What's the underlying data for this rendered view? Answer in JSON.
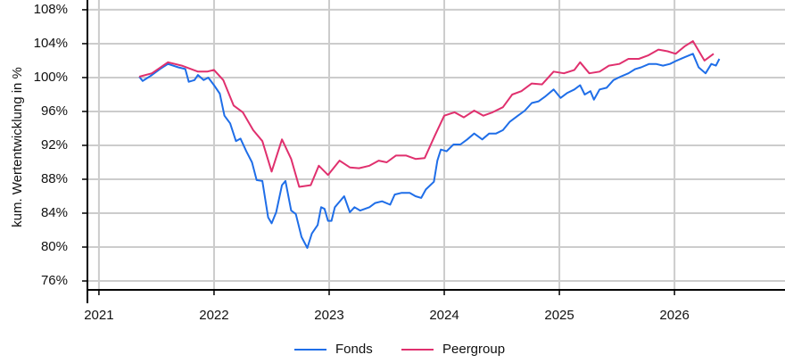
{
  "chart_data": {
    "type": "line",
    "y_label": "kum. Wertentwicklung in %",
    "xlim": [
      2020.9,
      2026.96
    ],
    "xticks": [
      2021,
      2022,
      2023,
      2024,
      2025,
      2026
    ],
    "ylim": [
      74.95,
      109.15
    ],
    "yticks": [
      {
        "value": 76,
        "label": "76%"
      },
      {
        "value": 80,
        "label": "80%"
      },
      {
        "value": 84,
        "label": "84%"
      },
      {
        "value": 88,
        "label": "88%"
      },
      {
        "value": 92,
        "label": "92%"
      },
      {
        "value": 96,
        "label": "96%"
      },
      {
        "value": 100,
        "label": "100%"
      },
      {
        "value": 104,
        "label": "104%"
      },
      {
        "value": 108,
        "label": "108%"
      }
    ],
    "grid": true,
    "legend": "bottom",
    "series": [
      {
        "name": "Fonds",
        "color": "#1f6ee8",
        "x": [
          2021.35,
          2021.38,
          2021.46,
          2021.53,
          2021.6,
          2021.69,
          2021.75,
          2021.78,
          2021.83,
          2021.86,
          2021.91,
          2021.95,
          2022.0,
          2022.05,
          2022.09,
          2022.14,
          2022.19,
          2022.23,
          2022.28,
          2022.33,
          2022.37,
          2022.42,
          2022.47,
          2022.5,
          2022.54,
          2022.59,
          2022.62,
          2022.67,
          2022.71,
          2022.76,
          2022.81,
          2022.85,
          2022.9,
          2022.93,
          2022.96,
          2022.99,
          2023.02,
          2023.05,
          2023.13,
          2023.18,
          2023.22,
          2023.27,
          2023.35,
          2023.4,
          2023.46,
          2023.53,
          2023.57,
          2023.63,
          2023.7,
          2023.75,
          2023.8,
          2023.84,
          2023.91,
          2023.94,
          2023.97,
          2024.02,
          2024.08,
          2024.14,
          2024.2,
          2024.26,
          2024.33,
          2024.39,
          2024.45,
          2024.51,
          2024.57,
          2024.64,
          2024.7,
          2024.76,
          2024.82,
          2024.88,
          2024.95,
          2025.01,
          2025.07,
          2025.13,
          2025.18,
          2025.22,
          2025.27,
          2025.3,
          2025.35,
          2025.41,
          2025.47,
          2025.53,
          2025.6,
          2025.66,
          2025.71,
          2025.78,
          2025.84,
          2025.9,
          2025.96,
          2026.02,
          2026.09,
          2026.16,
          2026.21,
          2026.27,
          2026.32,
          2026.36,
          2026.39
        ],
        "values": [
          100.1,
          99.6,
          100.3,
          101.0,
          101.6,
          101.2,
          101.0,
          99.5,
          99.7,
          100.3,
          99.7,
          100.0,
          99.1,
          98.1,
          95.5,
          94.6,
          92.5,
          92.8,
          91.3,
          90.0,
          87.9,
          87.8,
          83.5,
          82.8,
          84.1,
          87.3,
          87.8,
          84.3,
          83.9,
          81.2,
          79.9,
          81.6,
          82.6,
          84.7,
          84.5,
          83.1,
          83.1,
          84.7,
          86.0,
          84.1,
          84.7,
          84.3,
          84.7,
          85.2,
          85.4,
          85.0,
          86.2,
          86.4,
          86.4,
          86.0,
          85.8,
          86.8,
          87.7,
          90.2,
          91.5,
          91.3,
          92.1,
          92.1,
          92.7,
          93.4,
          92.7,
          93.4,
          93.4,
          93.8,
          94.8,
          95.5,
          96.1,
          97.0,
          97.2,
          97.8,
          98.6,
          97.6,
          98.2,
          98.6,
          99.1,
          98.0,
          98.4,
          97.4,
          98.6,
          98.8,
          99.7,
          100.1,
          100.5,
          101.0,
          101.2,
          101.6,
          101.6,
          101.4,
          101.6,
          102.0,
          102.4,
          102.8,
          101.2,
          100.5,
          101.6,
          101.4,
          102.2
        ]
      },
      {
        "name": "Peergroup",
        "color": "#e0306e",
        "x": [
          2021.35,
          2021.46,
          2021.6,
          2021.72,
          2021.86,
          2021.94,
          2022.0,
          2022.08,
          2022.17,
          2022.25,
          2022.34,
          2022.42,
          2022.5,
          2022.59,
          2022.67,
          2022.74,
          2022.84,
          2022.91,
          2022.99,
          2023.09,
          2023.18,
          2023.26,
          2023.35,
          2023.43,
          2023.5,
          2023.58,
          2023.67,
          2023.75,
          2023.83,
          2023.92,
          2024.0,
          2024.09,
          2024.17,
          2024.26,
          2024.34,
          2024.42,
          2024.51,
          2024.59,
          2024.67,
          2024.76,
          2024.85,
          2024.95,
          2025.04,
          2025.13,
          2025.18,
          2025.26,
          2025.35,
          2025.43,
          2025.52,
          2025.6,
          2025.69,
          2025.77,
          2025.86,
          2025.94,
          2026.01,
          2026.09,
          2026.16,
          2026.26,
          2026.34
        ],
        "values": [
          100.1,
          100.5,
          101.8,
          101.4,
          100.7,
          100.7,
          100.9,
          99.7,
          96.7,
          95.9,
          93.8,
          92.5,
          88.9,
          92.7,
          90.4,
          87.1,
          87.3,
          89.6,
          88.5,
          90.2,
          89.4,
          89.3,
          89.6,
          90.2,
          90.0,
          90.8,
          90.8,
          90.4,
          90.5,
          93.2,
          95.5,
          95.9,
          95.3,
          96.1,
          95.5,
          95.9,
          96.5,
          98.0,
          98.4,
          99.3,
          99.2,
          100.7,
          100.5,
          100.9,
          101.8,
          100.5,
          100.7,
          101.4,
          101.6,
          102.2,
          102.2,
          102.6,
          103.3,
          103.1,
          102.8,
          103.7,
          104.3,
          102.0,
          102.8
        ]
      }
    ]
  }
}
